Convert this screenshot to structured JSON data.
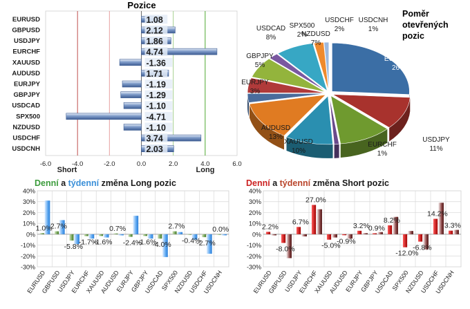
{
  "chart_data": [
    {
      "type": "bar",
      "orientation": "horizontal",
      "title": "Pozice",
      "categories": [
        "EURUSD",
        "GBPUSD",
        "USDJPY",
        "EURCHF",
        "XAUUSD",
        "AUDUSD",
        "EURJPY",
        "GBPJPY",
        "USDCAD",
        "SPX500",
        "NZDUSD",
        "USDCHF",
        "USDCNH"
      ],
      "values": [
        1.08,
        2.12,
        1.86,
        4.74,
        -1.36,
        1.71,
        -1.19,
        -1.29,
        -1.1,
        -4.71,
        -1.1,
        3.74,
        2.03
      ],
      "value_labels": [
        "1.08",
        "2.12",
        "1.86",
        "4.74",
        "-1.36",
        "1.71",
        "-1.19",
        "-1.29",
        "-1.10",
        "-4.71",
        "-1.10",
        "3.74",
        "2.03"
      ],
      "xlim": [
        -6,
        6
      ],
      "x_ticks": [
        "-6.0",
        "-4.0",
        "-2.0",
        "0.0",
        "2.0",
        "4.0",
        "6.0"
      ],
      "x_tick_values": [
        -6,
        -4,
        -2,
        0,
        2,
        4,
        6
      ],
      "short_label": "Short",
      "long_label": "Long",
      "reference_lines": [
        {
          "x": -4,
          "color": "#c0504d"
        },
        {
          "x": -2,
          "color": "#e6a0a0"
        },
        {
          "x": 2,
          "color": "#a6d08f"
        },
        {
          "x": 4,
          "color": "#4ea72e"
        }
      ],
      "colors": {
        "bar": "#4f6fa5",
        "bar_light": "#c5d3ea"
      }
    },
    {
      "type": "pie",
      "title_lines": [
        "Poměr",
        "otevřených",
        "pozic"
      ],
      "slices": [
        {
          "label": "EURUSD",
          "value": 26,
          "percent": "26%",
          "color": "#3b6ea5"
        },
        {
          "label": "GBPUSD",
          "value": 11,
          "percent": "11%",
          "color": "#a8322d"
        },
        {
          "label": "USDJPY",
          "value": 11,
          "percent": "11%",
          "color": "#6f9a2f"
        },
        {
          "label": "EURCHF",
          "value": 1,
          "percent": "1%",
          "color": "#6a4a8c"
        },
        {
          "label": "XAUUSD",
          "value": 10,
          "percent": "10%",
          "color": "#2a8fb0"
        },
        {
          "label": "AUDUSD",
          "value": 13,
          "percent": "13%",
          "color": "#e07b22"
        },
        {
          "label": "EURJPY",
          "value": 3,
          "percent": "3%",
          "color": "#4a6c9c"
        },
        {
          "label": "GBPJPY",
          "value": 5,
          "percent": "5%",
          "color": "#b03a3a"
        },
        {
          "label": "NZDUSD",
          "value": 7,
          "percent": "7%",
          "color": "#93b43c"
        },
        {
          "label": "SPX500",
          "value": 2,
          "percent": "2%",
          "color": "#7a58a0"
        },
        {
          "label": "USDCAD",
          "value": 8,
          "percent": "8%",
          "color": "#37a7c4"
        },
        {
          "label": "USDCHF",
          "value": 2,
          "percent": "2%",
          "color": "#ef8a2d"
        },
        {
          "label": "USDCNH",
          "value": 1,
          "percent": "1%",
          "color": "#9eb9de"
        }
      ]
    },
    {
      "type": "bar",
      "title_parts": [
        {
          "text": "Denní",
          "color": "#3c9c3c"
        },
        {
          "text": " a ",
          "color": "#1a1a1a"
        },
        {
          "text": "týdenní",
          "color": "#3a8fd8"
        },
        {
          "text": " změna Long pozic",
          "color": "#1a1a1a"
        }
      ],
      "categories": [
        "EURUSD",
        "GBPUSD",
        "USDJPY",
        "EURCHF",
        "XAUUSD",
        "AUDUSD",
        "EURJPY",
        "GBPJPY",
        "USDCAD",
        "SPX500",
        "NZDUSD",
        "USDCHF",
        "USDCNH"
      ],
      "series": [
        {
          "name": "Denní",
          "color": "#4e8a2e",
          "values": [
            1.0,
            2.7,
            -5.8,
            -1.7,
            -1.6,
            0.7,
            -2.4,
            -1.6,
            -4.0,
            2.7,
            -0.4,
            -2.7,
            0.0
          ]
        },
        {
          "name": "Týdenní",
          "color": "#4c9be8",
          "values": [
            31,
            13,
            -9,
            -4,
            -3,
            -1,
            17,
            -4,
            -21,
            2,
            -5,
            -18,
            -1
          ]
        }
      ],
      "value_labels": [
        "1.0%",
        "2.7%",
        "-5.8%",
        "-1.7%",
        "-1.6%",
        "0.7%",
        "-2.4%",
        "-1.6%",
        "-4.0%",
        "2.7%",
        "-0.4%",
        "-2.7%",
        "0.0%"
      ],
      "ylim": [
        -30,
        40
      ],
      "y_ticks": [
        "40%",
        "30%",
        "20%",
        "10%",
        "0%",
        "-10%",
        "-20%",
        "-30%"
      ],
      "y_tick_values": [
        40,
        30,
        20,
        10,
        0,
        -10,
        -20,
        -30
      ]
    },
    {
      "type": "bar",
      "title_parts": [
        {
          "text": "Denní",
          "color": "#cc2222"
        },
        {
          "text": " a ",
          "color": "#1a1a1a"
        },
        {
          "text": "týdenní",
          "color": "#b9442a"
        },
        {
          "text": " změna Short pozic",
          "color": "#1a1a1a"
        }
      ],
      "categories": [
        "EURUSD",
        "GBPUSD",
        "USDJPY",
        "EURCHF",
        "XAUUSD",
        "AUDUSD",
        "EURJPY",
        "GBPJPY",
        "USDCAD",
        "SPX500",
        "NZDUSD",
        "USDCHF",
        "USDCNH"
      ],
      "series": [
        {
          "name": "Denní",
          "color": "#c00000",
          "values": [
            2.2,
            -8.0,
            6.7,
            27.0,
            -5.0,
            -0.9,
            3.2,
            0.9,
            8.2,
            -12.0,
            -6.8,
            14.2,
            3.3
          ]
        },
        {
          "name": "Týdenní",
          "color": "#5c1616",
          "values": [
            -1,
            -22,
            -2,
            23,
            -3,
            -4,
            1,
            2,
            16,
            3,
            -14,
            29,
            4
          ]
        }
      ],
      "value_labels": [
        "2.2%",
        "-8.0%",
        "6.7%",
        "27.0%",
        "-5.0%",
        "-0.9%",
        "3.2%",
        "0.9%",
        "8.2%",
        "-12.0%",
        "-6.8%",
        "14.2%",
        "3.3%"
      ],
      "ylim": [
        -30,
        40
      ],
      "y_ticks": [
        "40%",
        "30%",
        "20%",
        "10%",
        "0%",
        "-10%",
        "-20%",
        "-30%"
      ],
      "y_tick_values": [
        40,
        30,
        20,
        10,
        0,
        -10,
        -20,
        -30
      ]
    }
  ]
}
